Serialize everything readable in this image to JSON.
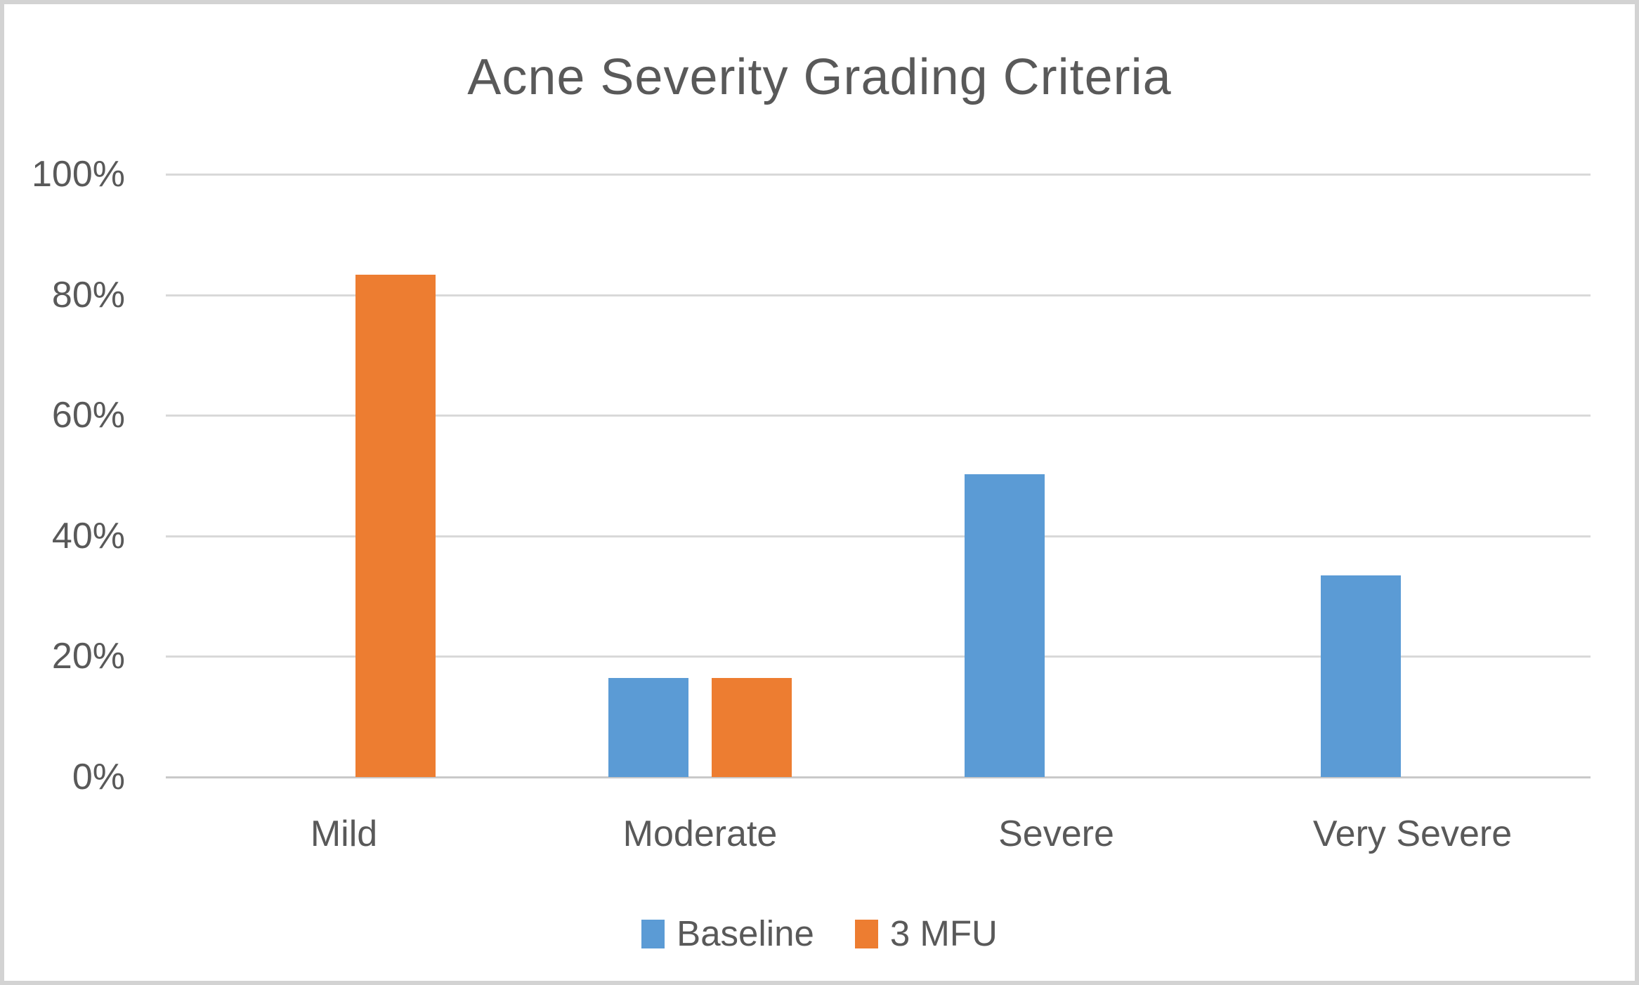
{
  "chart_data": {
    "type": "bar",
    "title": "Acne Severity Grading Criteria",
    "categories": [
      "Mild",
      "Moderate",
      "Severe",
      "Very Severe"
    ],
    "series": [
      {
        "name": "Baseline",
        "color": "#5b9bd5",
        "values": [
          0,
          16.4,
          50.2,
          33.4
        ]
      },
      {
        "name": "3 MFU",
        "color": "#ed7d31",
        "values": [
          83.3,
          16.4,
          0,
          0
        ]
      }
    ],
    "y_axis": {
      "min": 0,
      "max": 100,
      "step": 20,
      "tick_labels": [
        "0%",
        "20%",
        "40%",
        "60%",
        "80%",
        "100%"
      ]
    },
    "xlabel": "",
    "ylabel": "",
    "grid": true,
    "legend_position": "bottom",
    "colors": {
      "gridline": "#d9d9d9",
      "axis_line": "#c9c9c9",
      "text": "#595959",
      "frame_border": "#d3d3d3",
      "background": "#ffffff"
    }
  }
}
